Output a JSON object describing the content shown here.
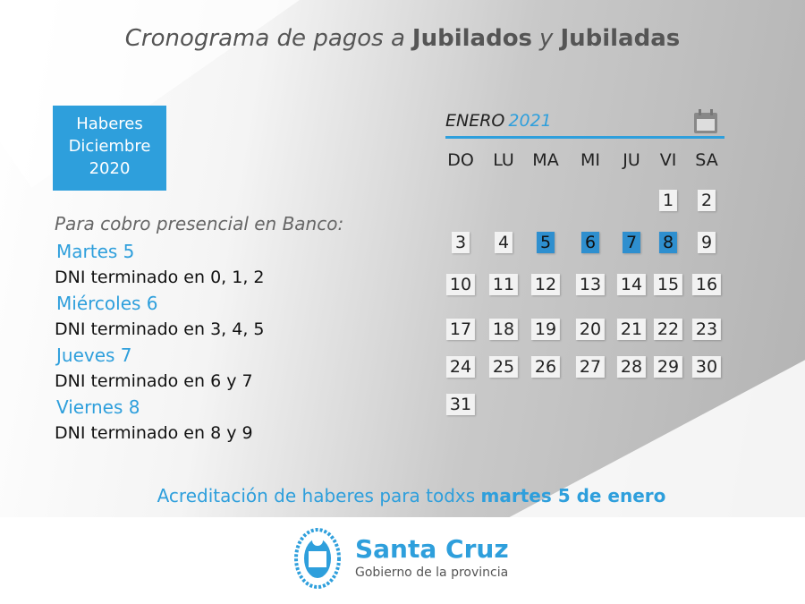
{
  "title": {
    "parts": [
      "Cronograma de pagos a",
      "Jubilados",
      "y",
      "Jubiladas"
    ]
  },
  "badge": {
    "lines": [
      "Haberes",
      "Diciembre",
      "2020"
    ]
  },
  "subtitle": "Para cobro presencial en Banco:",
  "schedule": [
    {
      "day": "Martes 5",
      "dni": "DNI terminado en 0, 1, 2"
    },
    {
      "day": "Miércoles 6",
      "dni": "DNI terminado en 3, 4, 5"
    },
    {
      "day": "Jueves 7",
      "dni": "DNI terminado en 6 y 7"
    },
    {
      "day": "Viernes 8",
      "dni": "DNI terminado en 8 y 9"
    }
  ],
  "calendar": {
    "month": "ENERO",
    "year": "2021",
    "weekdays": [
      "DO",
      "LU",
      "MA",
      "MI",
      "JU",
      "VI",
      "SA"
    ],
    "weeks": [
      [
        null,
        null,
        null,
        null,
        null,
        1,
        2
      ],
      [
        3,
        4,
        5,
        6,
        7,
        8,
        9
      ],
      [
        10,
        11,
        12,
        13,
        14,
        15,
        16
      ],
      [
        17,
        18,
        19,
        20,
        21,
        22,
        23
      ],
      [
        24,
        25,
        26,
        27,
        28,
        29,
        30
      ],
      [
        31,
        null,
        null,
        null,
        null,
        null,
        null
      ]
    ],
    "highlighted": [
      5,
      6,
      7,
      8
    ]
  },
  "footer": {
    "parts": [
      "Acreditación de haberes para todxs",
      "martes 5 de enero"
    ]
  },
  "logo": {
    "name": "Santa Cruz",
    "tagline": "Gobierno de la provincia"
  }
}
